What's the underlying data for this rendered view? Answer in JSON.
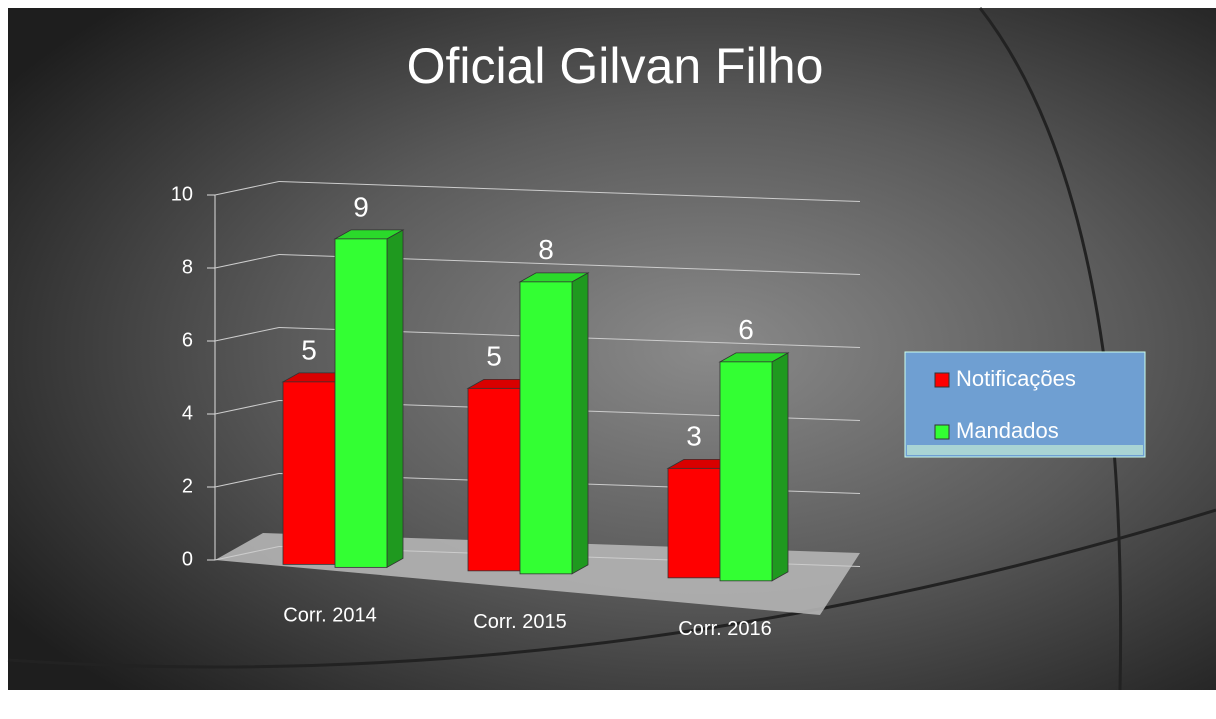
{
  "chart_data": {
    "type": "bar3d",
    "title": "Oficial Gilvan Filho",
    "categories": [
      "Corr. 2014",
      "Corr. 2015",
      "Corr. 2016"
    ],
    "series": [
      {
        "name": "Notificações",
        "color": "#ff0000",
        "values": [
          5,
          5,
          3
        ]
      },
      {
        "name": "Mandados",
        "color": "#33ff33",
        "values": [
          9,
          8,
          6
        ]
      }
    ],
    "ylim": [
      0,
      10
    ],
    "yticks": [
      0,
      2,
      4,
      6,
      8,
      10
    ],
    "grid": true,
    "legend": "right"
  }
}
